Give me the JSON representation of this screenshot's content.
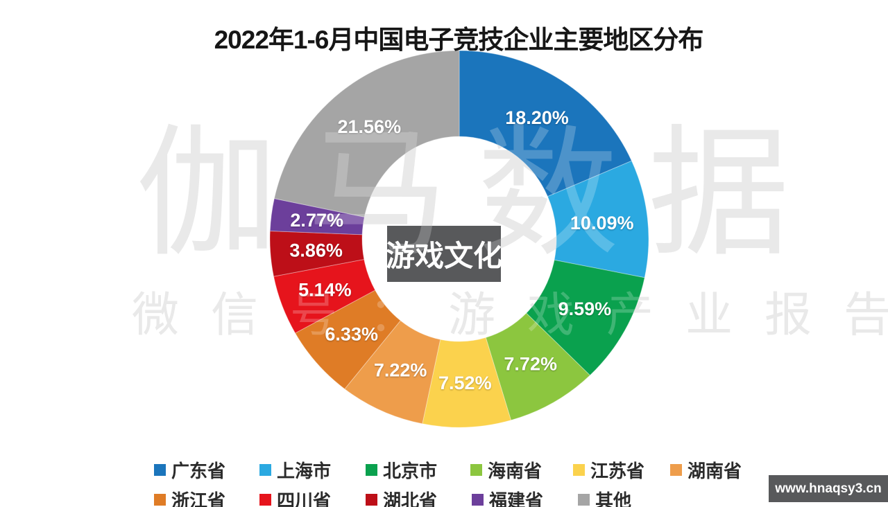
{
  "title": "2022年1-6月中国电子竞技企业主要地区分布",
  "center_label": "游戏文化",
  "watermark": {
    "line1": "伽马数据",
    "line2": "微信号：游戏产业报告"
  },
  "corner_watermark": "www.hnaqsy3.cn",
  "chart_data": {
    "type": "pie",
    "subtype": "donut",
    "title": "2022年1-6月中国电子竞技企业主要地区分布",
    "total": 100,
    "start_angle_deg_from_top": 0,
    "direction": "clockwise",
    "legend_position": "bottom",
    "categories": [
      "广东省",
      "上海市",
      "北京市",
      "海南省",
      "江苏省",
      "湖南省",
      "浙江省",
      "四川省",
      "湖北省",
      "福建省",
      "其他"
    ],
    "values": [
      18.2,
      10.09,
      9.59,
      7.72,
      7.52,
      7.22,
      6.33,
      5.14,
      3.86,
      2.77,
      21.56
    ],
    "labels": [
      "18.20%",
      "10.09%",
      "9.59%",
      "7.72%",
      "7.52%",
      "7.22%",
      "6.33%",
      "5.14%",
      "3.86%",
      "2.77%",
      "21.56%"
    ],
    "colors": [
      "#1b75bc",
      "#2ba9e1",
      "#0aa14e",
      "#8cc63f",
      "#fbd24d",
      "#ee9d4b",
      "#df7c26",
      "#e6141c",
      "#bd0f18",
      "#6c3f9b",
      "#a5a5a5"
    ]
  },
  "colors": {
    "title_text": "#161616",
    "center_box_bg": "#58595b",
    "watermark_gray": "#e3e3e3",
    "corner_box_bg": "#58595b",
    "label_text": "#ffffff"
  }
}
